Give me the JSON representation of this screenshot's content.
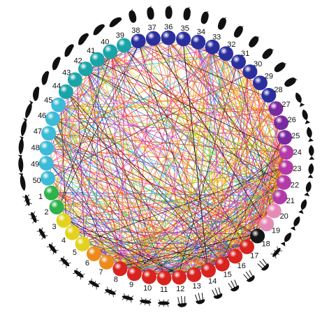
{
  "diagram": {
    "type": "circular-food-web",
    "node_count": 50,
    "labels": [
      "1",
      "2",
      "3",
      "4",
      "5",
      "6",
      "7",
      "8",
      "9",
      "10",
      "11",
      "12",
      "13",
      "14",
      "15",
      "16",
      "17",
      "18",
      "19",
      "20",
      "21",
      "22",
      "23",
      "24",
      "25",
      "26",
      "27",
      "28",
      "29",
      "30",
      "31",
      "32",
      "33",
      "34",
      "35",
      "36",
      "37",
      "38",
      "39",
      "40",
      "41",
      "42",
      "43",
      "44",
      "45",
      "46",
      "47",
      "48",
      "49",
      "50"
    ],
    "colors": {
      "green": "#2fb24a",
      "yellow": "#e3d21e",
      "orange": "#ee8a1c",
      "red": "#d8231f",
      "black": "#161616",
      "pink": "#e58ab8",
      "magenta": "#b43aa8",
      "purple": "#7a2aa0",
      "navy": "#2b2f9e",
      "blue": "#3a5bc6",
      "teal": "#1aa4a8",
      "cyan": "#3bbbd8"
    },
    "link_colors": [
      "#e8222b",
      "#ff5a00",
      "#ffd400",
      "#8fd400",
      "#00b7c8",
      "#1f4fd8",
      "#c21fd2",
      "#ff3fa0",
      "#f07c00",
      "#000000"
    ]
  }
}
